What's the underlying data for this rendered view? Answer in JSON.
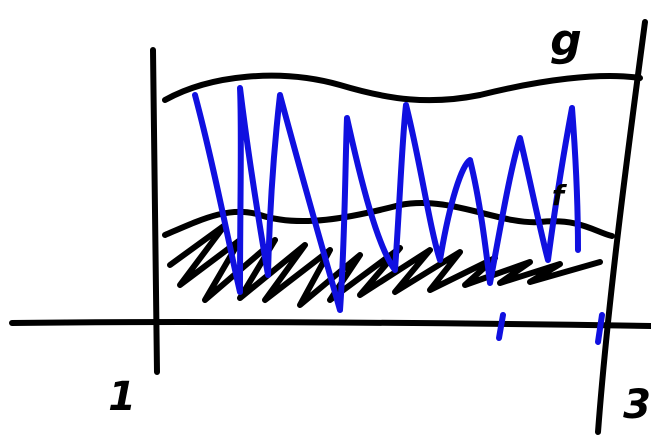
{
  "labels": {
    "upper_curve": "g",
    "lower_curve": "f",
    "left_bound": "1",
    "right_bound": "3"
  }
}
